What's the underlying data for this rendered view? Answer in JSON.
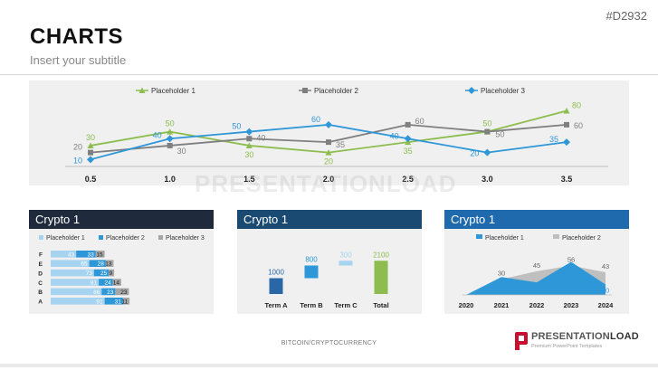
{
  "header": {
    "title": "CHARTS",
    "subtitle": "Insert your subtitle",
    "code": "#D2932"
  },
  "watermark": "PRESENTATIONLOAD",
  "footer": {
    "text": "BITCOIN/CRYPTOCURRENCY",
    "logo_name": "PRESENTATION",
    "logo_name_bold": "LOAD",
    "logo_tagline": "Premium PowerPoint Templates"
  },
  "colors": {
    "green": "#8cbd4e",
    "gray": "#7f7f7f",
    "blue": "#2e97d8",
    "darkblue": "#2a67a6",
    "navy": "#1f2b3c",
    "lightgray": "#a6a6a6",
    "skyblue": "#a5d3f0"
  },
  "chart_data": [
    {
      "type": "line",
      "x": [
        0.5,
        1.0,
        1.5,
        2.0,
        2.5,
        3.0,
        3.5
      ],
      "x_labels": [
        "0.5",
        "1.0",
        "1.5",
        "2.0",
        "2.5",
        "3.0",
        "3.5"
      ],
      "ylim": [
        0,
        95
      ],
      "legend": "top",
      "series": [
        {
          "name": "Placeholder 1",
          "color": "#8cbd4e",
          "marker": "triangle",
          "values": [
            30,
            50,
            30,
            20,
            35,
            50,
            80
          ]
        },
        {
          "name": "Placeholder 2",
          "color": "#7f7f7f",
          "marker": "square",
          "values": [
            20,
            30,
            40,
            35,
            60,
            50,
            60
          ]
        },
        {
          "name": "Placeholder 3",
          "color": "#2e97d8",
          "marker": "diamond",
          "values": [
            10,
            40,
            50,
            60,
            40,
            20,
            35
          ]
        }
      ]
    },
    {
      "type": "bar",
      "orientation": "horizontal",
      "stacked": true,
      "title": "Crypto 1",
      "categories": [
        "F",
        "E",
        "D",
        "C",
        "B",
        "A"
      ],
      "series": [
        {
          "name": "Placeholder 1",
          "color": "#a5d3f0",
          "values": [
            43,
            65,
            73,
            81,
            86,
            91
          ]
        },
        {
          "name": "Placeholder 2",
          "color": "#2e97d8",
          "values": [
            33,
            28,
            25,
            24,
            23,
            31
          ]
        },
        {
          "name": "Placeholder 3",
          "color": "#a6a6a6",
          "values": [
            15,
            13,
            9,
            14,
            23,
            11
          ]
        }
      ]
    },
    {
      "type": "bar",
      "subtype": "waterfall",
      "title": "Crypto 1",
      "categories": [
        "Term A",
        "Term B",
        "Term C",
        "Total"
      ],
      "values": [
        1000,
        800,
        300,
        2100
      ],
      "colors": [
        "#2a67a6",
        "#2e97d8",
        "#a5d3f0",
        "#8cbd4e"
      ]
    },
    {
      "type": "area",
      "title": "Crypto 1",
      "categories": [
        "2020",
        "2021",
        "2022",
        "2023",
        "2024"
      ],
      "series": [
        {
          "name": "Placeholder 1",
          "color": "#2e97d8",
          "values": [
            0,
            34,
            24,
            63,
            20
          ]
        },
        {
          "name": "Placeholder 2",
          "color": "#bfbfbf",
          "values": [
            0,
            30,
            45,
            56,
            43
          ]
        }
      ]
    }
  ]
}
